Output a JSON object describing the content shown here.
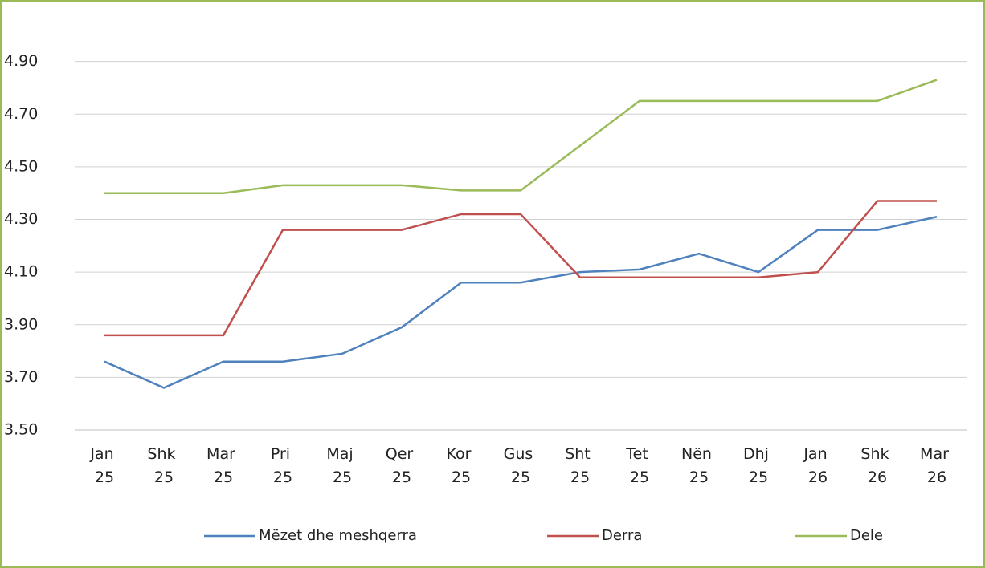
{
  "chart_data": {
    "type": "line",
    "categories": [
      "Jan 25",
      "Shk 25",
      "Mar 25",
      "Pri 25",
      "Maj 25",
      "Qer 25",
      "Kor 25",
      "Gus 25",
      "Sht 25",
      "Tet 25",
      "Nën 25",
      "Dhj 25",
      "Jan 26",
      "Shk 26",
      "Mar 26"
    ],
    "series": [
      {
        "name": "Mëzet dhe meshqerra",
        "color": "#4f81bd",
        "values": [
          3.76,
          3.66,
          3.76,
          3.76,
          3.79,
          3.89,
          4.06,
          4.06,
          4.1,
          4.11,
          4.17,
          4.1,
          4.26,
          4.26,
          4.31
        ]
      },
      {
        "name": "Derra",
        "color": "#c0504d",
        "values": [
          3.86,
          3.86,
          3.86,
          4.26,
          4.26,
          4.26,
          4.32,
          4.32,
          4.08,
          4.08,
          4.08,
          4.08,
          4.1,
          4.37,
          4.37
        ]
      },
      {
        "name": "Dele",
        "color": "#9bbb59",
        "values": [
          4.4,
          4.4,
          4.4,
          4.43,
          4.43,
          4.43,
          4.41,
          4.41,
          4.58,
          4.75,
          4.75,
          4.75,
          4.75,
          4.75,
          4.83
        ]
      }
    ],
    "ylim": [
      3.5,
      5.1
    ],
    "yticks": [
      {
        "value": 3.5,
        "label": "3.50"
      },
      {
        "value": 3.7,
        "label": "3.70"
      },
      {
        "value": 3.9,
        "label": "3.90"
      },
      {
        "value": 4.1,
        "label": "4.10"
      },
      {
        "value": 4.3,
        "label": "4.30"
      },
      {
        "value": 4.5,
        "label": "4.50"
      },
      {
        "value": 4.7,
        "label": "4.70"
      },
      {
        "value": 4.9,
        "label": "4.90"
      }
    ],
    "grid": true,
    "legend": "bottom"
  }
}
